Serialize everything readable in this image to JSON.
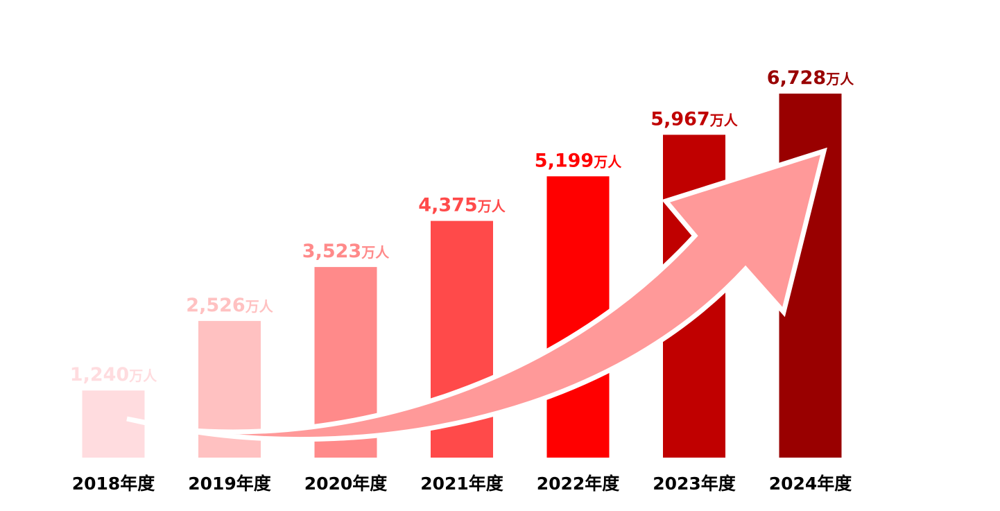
{
  "chart_data": {
    "type": "bar",
    "categories": [
      "2018年度",
      "2019年度",
      "2020年度",
      "2021年度",
      "2022年度",
      "2023年度",
      "2024年度"
    ],
    "values": [
      1240,
      2526,
      3523,
      4375,
      5199,
      5967,
      6728
    ],
    "value_labels": [
      "1,240",
      "2,526",
      "3,523",
      "4,375",
      "5,199",
      "5,967",
      "6,728"
    ],
    "unit": "万人",
    "bar_colors": [
      "#ffdcdf",
      "#ffc1c1",
      "#ff8a8a",
      "#ff4a4a",
      "#ff0000",
      "#c00000",
      "#990000"
    ],
    "label_colors": [
      "#ffdcdf",
      "#ffc1c1",
      "#ff8a8a",
      "#ff4a4a",
      "#ff0000",
      "#c00000",
      "#990000"
    ],
    "arrow_color": "#ff9999",
    "arrow_outline": "#ffffff",
    "ylim": [
      0,
      6728
    ],
    "grid": false,
    "legend": "none"
  }
}
